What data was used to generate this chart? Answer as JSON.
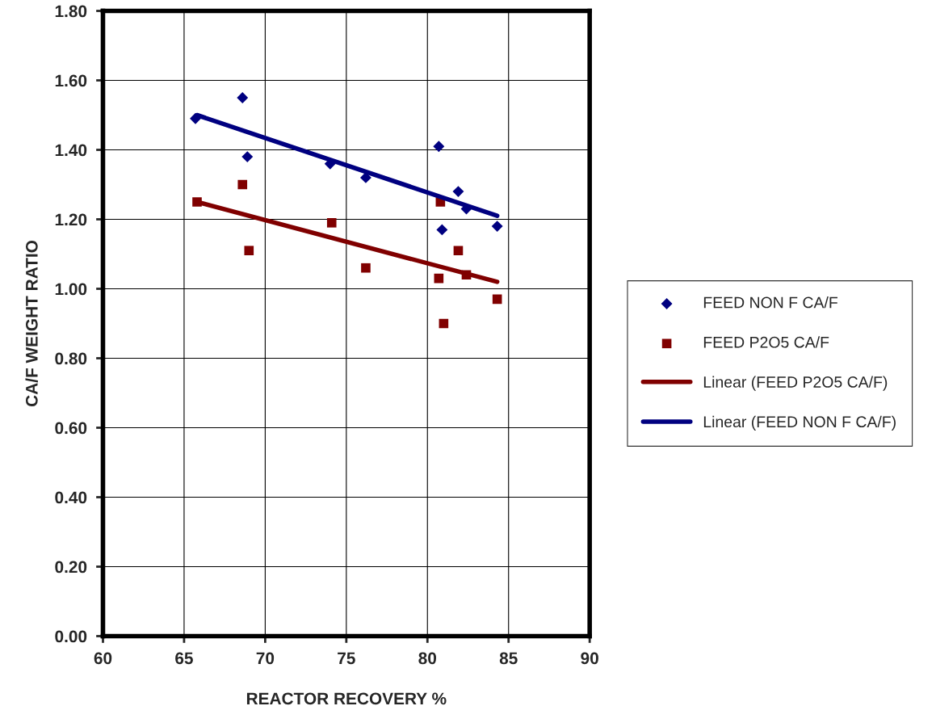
{
  "chart_data": {
    "type": "scatter",
    "xlabel": "REACTOR RECOVERY %",
    "ylabel": "CA/F WEIGHT RATIO",
    "xlim": [
      60,
      90
    ],
    "xticks": [
      60,
      65,
      70,
      75,
      80,
      85,
      90
    ],
    "ylim": [
      0,
      1.8
    ],
    "yticks": [
      {
        "value": 0,
        "label": "0.00"
      },
      {
        "value": 0.2,
        "label": "0.20"
      },
      {
        "value": 0.4,
        "label": "0.40"
      },
      {
        "value": 0.6,
        "label": "0.60"
      },
      {
        "value": 0.8,
        "label": "0.80"
      },
      {
        "value": 1.0,
        "label": "1.00"
      },
      {
        "value": 1.2,
        "label": "1.20"
      },
      {
        "value": 1.4,
        "label": "1.40"
      },
      {
        "value": 1.6,
        "label": "1.60"
      },
      {
        "value": 1.8,
        "label": "1.80"
      }
    ],
    "grid": true,
    "legend": "right",
    "series": [
      {
        "name": "FEED NON F CA/F",
        "type": "scatter",
        "marker": "diamond",
        "color": "#000080",
        "x": [
          65.7,
          68.6,
          68.9,
          74.0,
          76.2,
          80.7,
          81.9,
          82.4,
          80.9,
          84.3
        ],
        "values": [
          1.49,
          1.55,
          1.38,
          1.36,
          1.32,
          1.41,
          1.28,
          1.23,
          1.17,
          1.18
        ]
      },
      {
        "name": "FEED P2O5 CA/F",
        "type": "scatter",
        "marker": "square",
        "color": "#800000",
        "x": [
          65.8,
          68.6,
          69.0,
          74.1,
          76.2,
          80.8,
          81.9,
          82.4,
          80.7,
          81.0,
          84.3
        ],
        "values": [
          1.25,
          1.3,
          1.11,
          1.19,
          1.06,
          1.25,
          1.11,
          1.04,
          1.03,
          0.9,
          0.97
        ]
      },
      {
        "name": "Linear (FEED P2O5 CA/F)",
        "type": "line",
        "marker": "none",
        "color": "#800000",
        "x": [
          65.8,
          84.3
        ],
        "values": [
          1.25,
          1.02
        ]
      },
      {
        "name": "Linear (FEED NON F CA/F)",
        "type": "line",
        "marker": "none",
        "color": "#000080",
        "x": [
          65.8,
          84.3
        ],
        "values": [
          1.5,
          1.21
        ]
      }
    ]
  }
}
